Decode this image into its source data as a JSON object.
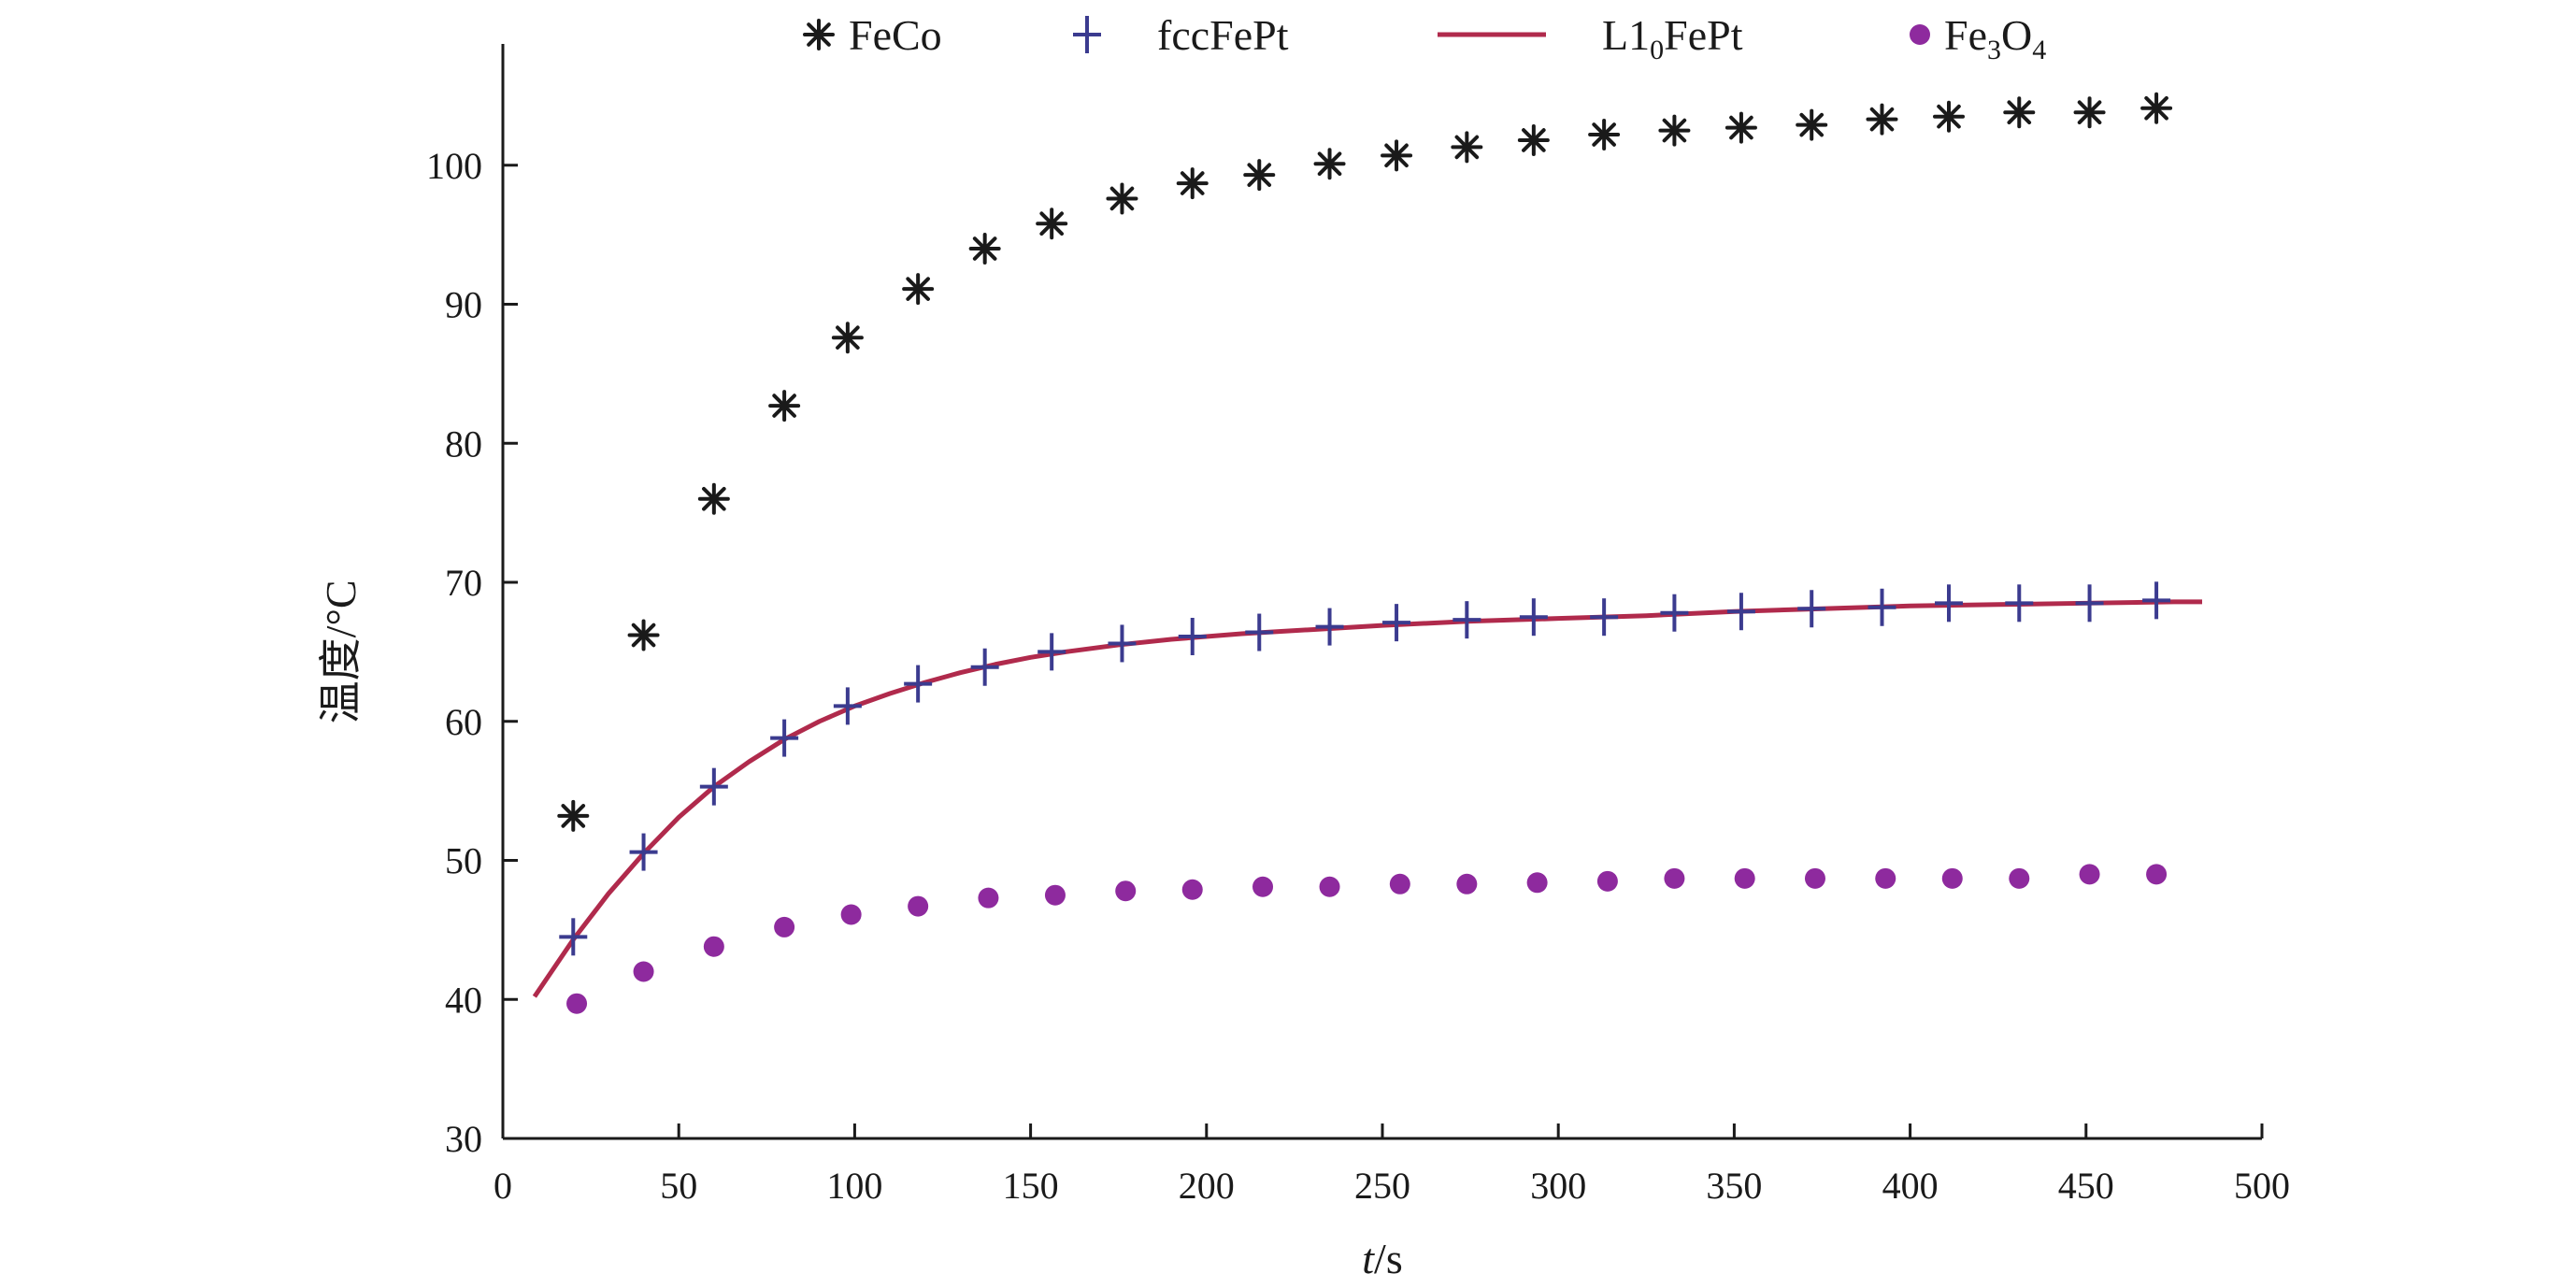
{
  "chart_data": {
    "type": "scatter",
    "title": "",
    "xlabel": {
      "italic": "t",
      "rest": "/s"
    },
    "ylabel": "温度/°C",
    "xlim": [
      0,
      500
    ],
    "ylim": [
      30,
      110
    ],
    "xticks": [
      0,
      50,
      100,
      150,
      200,
      250,
      300,
      350,
      400,
      450,
      500
    ],
    "yticks": [
      30,
      40,
      50,
      60,
      70,
      80,
      90,
      100
    ],
    "grid": false,
    "legend": {
      "position": "top",
      "items": [
        {
          "series": "FeCo",
          "label": "FeCo",
          "sub": "",
          "tail": ""
        },
        {
          "series": "fccFePt",
          "label": "fccFePt",
          "sub": "",
          "tail": ""
        },
        {
          "series": "L1_0FePt",
          "label": "L1",
          "sub": "0",
          "tail": "FePt"
        },
        {
          "series": "Fe3O4",
          "label": "Fe",
          "sub": "3",
          "tail": "O",
          "sub2": "4"
        }
      ]
    },
    "series": [
      {
        "name": "FeCo",
        "marker": "asterisk",
        "color": "#1a1a1a",
        "x": [
          20,
          40,
          60,
          80,
          98,
          118,
          137,
          156,
          176,
          196,
          215,
          235,
          254,
          274,
          293,
          313,
          333,
          352,
          372,
          392,
          411,
          431,
          451,
          470
        ],
        "y": [
          53.2,
          66.2,
          76,
          82.7,
          87.6,
          91.1,
          94,
          95.8,
          97.6,
          98.7,
          99.3,
          100.1,
          100.7,
          101.3,
          101.8,
          102.2,
          102.5,
          102.7,
          102.9,
          103.3,
          103.5,
          103.8,
          103.8,
          104.1
        ]
      },
      {
        "name": "fccFePt",
        "marker": "plus",
        "color": "#3b3b8f",
        "x": [
          20,
          40,
          60,
          80,
          98,
          118,
          137,
          156,
          176,
          196,
          215,
          235,
          254,
          274,
          293,
          313,
          333,
          352,
          372,
          392,
          411,
          431,
          451,
          470
        ],
        "y": [
          44.5,
          50.6,
          55.3,
          58.8,
          61.1,
          62.7,
          63.9,
          65,
          65.6,
          66.1,
          66.4,
          66.8,
          67.1,
          67.3,
          67.5,
          67.5,
          67.8,
          67.9,
          68.1,
          68.2,
          68.5,
          68.5,
          68.5,
          68.7
        ]
      },
      {
        "name": "L1_0FePt",
        "marker": "line",
        "color": "#b02a4c",
        "x": [
          9,
          20,
          30,
          40,
          50,
          60,
          70,
          80,
          90,
          100,
          110,
          120,
          130,
          140,
          150,
          160,
          175,
          190,
          210,
          230,
          250,
          275,
          300,
          325,
          350,
          375,
          400,
          425,
          450,
          475,
          483
        ],
        "y": [
          40.2,
          44.3,
          47.6,
          50.5,
          53.1,
          55.3,
          57.1,
          58.7,
          60,
          61.1,
          62,
          62.8,
          63.5,
          64.1,
          64.6,
          65,
          65.5,
          65.9,
          66.3,
          66.6,
          66.9,
          67.2,
          67.4,
          67.6,
          67.9,
          68.1,
          68.3,
          68.4,
          68.5,
          68.6,
          68.6
        ]
      },
      {
        "name": "Fe3O4",
        "marker": "dot",
        "color": "#8e2a9e",
        "x": [
          21,
          40,
          60,
          80,
          99,
          118,
          138,
          157,
          177,
          196,
          216,
          235,
          255,
          274,
          294,
          314,
          333,
          353,
          373,
          393,
          412,
          431,
          451,
          470
        ],
        "y": [
          39.7,
          42,
          43.8,
          45.2,
          46.1,
          46.7,
          47.3,
          47.5,
          47.8,
          47.9,
          48.1,
          48.1,
          48.3,
          48.3,
          48.4,
          48.5,
          48.7,
          48.7,
          48.7,
          48.7,
          48.7,
          48.7,
          49,
          49
        ]
      }
    ]
  }
}
